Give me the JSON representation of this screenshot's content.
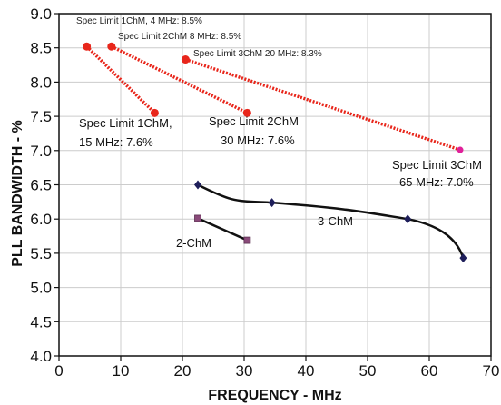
{
  "chart_data": {
    "type": "line",
    "xlabel": "FREQUENCY - MHz",
    "ylabel": "PLL BANDWIDTH - %",
    "xlim": [
      0,
      70
    ],
    "ylim": [
      4.0,
      9.0
    ],
    "x_ticks": [
      "0",
      "10",
      "20",
      "30",
      "40",
      "50",
      "60",
      "70"
    ],
    "y_ticks": [
      "4.0",
      "4.5",
      "5.0",
      "5.5",
      "6.0",
      "6.5",
      "7.0",
      "7.5",
      "8.0",
      "8.5",
      "9.0"
    ],
    "grid": true,
    "colors": {
      "spec": "#e8261b",
      "spec3_end": "#e0209a",
      "chm3": "#1e1e5a",
      "chm2": "#8a4a7a",
      "line": "#111111",
      "grid": "#cccccc"
    },
    "series": [
      {
        "name": "Spec Limit 1ChM",
        "x": [
          4.5,
          15.5
        ],
        "y": [
          8.52,
          7.55
        ]
      },
      {
        "name": "Spec Limit 2ChM",
        "x": [
          8.5,
          30.5
        ],
        "y": [
          8.52,
          7.55
        ]
      },
      {
        "name": "Spec Limit 3ChM",
        "x": [
          20.5,
          65.0
        ],
        "y": [
          8.33,
          7.01
        ]
      },
      {
        "name": "3-ChM",
        "x": [
          22.5,
          34.5,
          56.5,
          65.5
        ],
        "y": [
          6.5,
          6.24,
          6.0,
          5.43
        ]
      },
      {
        "name": "2-ChM",
        "x": [
          22.5,
          30.5
        ],
        "y": [
          6.01,
          5.69
        ]
      }
    ],
    "annotations": {
      "spec1_top": "Spec Limit 1ChM, 4 MHz: 8.5%",
      "spec2_top": "Spec Limit 2ChM 8 MHz: 8.5%",
      "spec3_top": "Spec Limit 3ChM 20 MHz: 8.3%",
      "spec1_bottom_line1": "Spec Limit 1ChM,",
      "spec1_bottom_line2": "15 MHz: 7.6%",
      "spec2_bottom_line1": "Spec Limit 2ChM",
      "spec2_bottom_line2": "30 MHz: 7.6%",
      "spec3_bottom_line1": "Spec Limit 3ChM",
      "spec3_bottom_line2": "65 MHz: 7.0%",
      "chm3_label": "3-ChM",
      "chm2_label": "2-ChM"
    }
  }
}
